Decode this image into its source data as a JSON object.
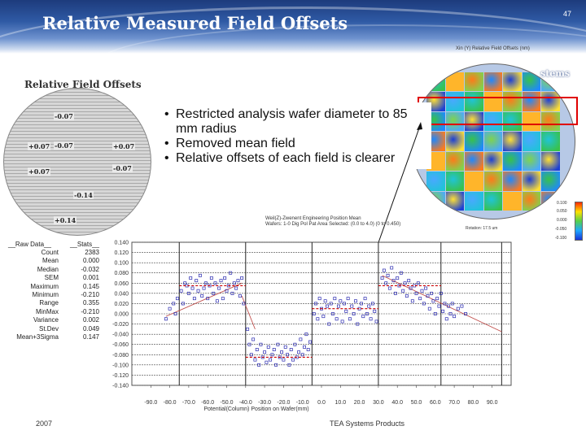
{
  "slide": {
    "title": "Relative Measured Field Offsets",
    "number": "47",
    "brand": "stems",
    "ghost_title": "Xin (Y) Relative Field Offsets (nm)",
    "footer_year": "2007",
    "footer_product": "TEA Systems Products"
  },
  "left_map": {
    "title": "Relative Field Offsets",
    "values": [
      "-0.07",
      "+0.07",
      "-0.07",
      "+0.07",
      "+0.07",
      "-0.07",
      "-0.14",
      "+0.14"
    ]
  },
  "bullets": [
    "Restricted analysis wafer diameter to 85 mm radius",
    "Removed mean field",
    "Relative offsets of each field is clearer"
  ],
  "right_map": {
    "caption": "Rotation: 17.5 um",
    "scale_labels": [
      "0.100",
      "0.050",
      "0.000",
      "-0.050",
      "-0.100"
    ]
  },
  "colors": {
    "banner_dark": "#1d3b7c",
    "highlight": "#e00000",
    "data_points": "#2a2ab0",
    "fit_line": "#c0504d",
    "field_means": "#cc0000"
  },
  "stats": {
    "header_left": "__Raw Data__",
    "header_right": "__Stats__",
    "rows": [
      {
        "label": "Count",
        "value": "2383"
      },
      {
        "label": "Mean",
        "value": "0.000"
      },
      {
        "label": "Median",
        "value": "-0.032"
      },
      {
        "label": "SEM",
        "value": "0.001"
      },
      {
        "label": "Maximum",
        "value": "0.145"
      },
      {
        "label": "Minimum",
        "value": "-0.210"
      },
      {
        "label": "Range",
        "value": "0.355"
      },
      {
        "label": "MinMax",
        "value": "-0.210"
      },
      {
        "label": "Variance",
        "value": "0.002"
      },
      {
        "label": "St.Dev",
        "value": "0.049"
      },
      {
        "label": "Mean+3Sigma",
        "value": "0.147"
      }
    ]
  },
  "chart_data": {
    "type": "scatter",
    "title": "Weil(Z)-Zwenent Engineering Position Mean",
    "subtitle": "Wafers: 1-0 Dig Pol Pat Area Selected: (0.0 to 4.0) (0 to 0.450)",
    "xlabel": "Potential(Column) Position on Wafer(mm)",
    "ylabel": "",
    "xlim": [
      -100,
      100
    ],
    "ylim": [
      -0.14,
      0.14
    ],
    "x_ticks": [
      "-90.0",
      "-80.0",
      "-70.0",
      "-60.0",
      "-50.0",
      "-40.0",
      "-30.0",
      "-20.0",
      "-10.0",
      "0.0",
      "10.0",
      "20.0",
      "30.0",
      "40.0",
      "50.0",
      "60.0",
      "70.0",
      "80.0",
      "90.0"
    ],
    "y_ticks": [
      "0.140",
      "0.120",
      "0.100",
      "0.080",
      "0.060",
      "0.040",
      "0.020",
      "0.000",
      "-0.020",
      "-0.040",
      "-0.060",
      "-0.080",
      "-0.100",
      "-0.120",
      "-0.140"
    ],
    "field_boundaries": [
      -75,
      -40,
      -5,
      30,
      63,
      95
    ],
    "field_means": [
      {
        "x0": -75,
        "x1": -40,
        "y": 0.055
      },
      {
        "x0": -40,
        "x1": -5,
        "y": -0.085
      },
      {
        "x0": -5,
        "x1": 30,
        "y": 0.01
      },
      {
        "x0": 30,
        "x1": 63,
        "y": 0.055
      }
    ],
    "fit_segments": [
      {
        "x0": -82,
        "y0": -0.005,
        "x1": -42,
        "y1": 0.06
      },
      {
        "x0": -42,
        "y0": 0.035,
        "x1": -35,
        "y1": -0.03
      },
      {
        "x0": 32,
        "y0": 0.075,
        "x1": 95,
        "y1": -0.035
      }
    ],
    "points": [
      [
        -82,
        -0.01
      ],
      [
        -80,
        0.01
      ],
      [
        -78,
        0.02
      ],
      [
        -77,
        0.0
      ],
      [
        -76,
        0.03
      ],
      [
        -74,
        0.045
      ],
      [
        -73,
        0.02
      ],
      [
        -72,
        0.06
      ],
      [
        -71,
        0.055
      ],
      [
        -70,
        0.04
      ],
      [
        -69,
        0.07
      ],
      [
        -68,
        0.05
      ],
      [
        -67,
        0.03
      ],
      [
        -66,
        0.065
      ],
      [
        -65,
        0.045
      ],
      [
        -64,
        0.075
      ],
      [
        -63,
        0.035
      ],
      [
        -62,
        0.05
      ],
      [
        -61,
        0.06
      ],
      [
        -60,
        0.03
      ],
      [
        -59,
        0.055
      ],
      [
        -58,
        0.07
      ],
      [
        -57,
        0.04
      ],
      [
        -56,
        0.06
      ],
      [
        -55,
        0.025
      ],
      [
        -54,
        0.05
      ],
      [
        -53,
        0.065
      ],
      [
        -52,
        0.03
      ],
      [
        -51,
        0.07
      ],
      [
        -50,
        0.045
      ],
      [
        -49,
        0.055
      ],
      [
        -48,
        0.08
      ],
      [
        -47,
        0.04
      ],
      [
        -46,
        0.06
      ],
      [
        -45,
        0.05
      ],
      [
        -44,
        0.065
      ],
      [
        -43,
        0.035
      ],
      [
        -42,
        0.07
      ],
      [
        -41,
        0.02
      ],
      [
        -39,
        -0.03
      ],
      [
        -38,
        -0.06
      ],
      [
        -37,
        -0.08
      ],
      [
        -36,
        -0.05
      ],
      [
        -35,
        -0.09
      ],
      [
        -34,
        -0.07
      ],
      [
        -33,
        -0.1
      ],
      [
        -32,
        -0.06
      ],
      [
        -31,
        -0.085
      ],
      [
        -30,
        -0.075
      ],
      [
        -29,
        -0.095
      ],
      [
        -28,
        -0.065
      ],
      [
        -27,
        -0.09
      ],
      [
        -26,
        -0.08
      ],
      [
        -25,
        -0.07
      ],
      [
        -24,
        -0.1
      ],
      [
        -23,
        -0.06
      ],
      [
        -22,
        -0.085
      ],
      [
        -21,
        -0.075
      ],
      [
        -20,
        -0.09
      ],
      [
        -19,
        -0.065
      ],
      [
        -18,
        -0.08
      ],
      [
        -17,
        -0.1
      ],
      [
        -16,
        -0.07
      ],
      [
        -15,
        -0.09
      ],
      [
        -14,
        -0.06
      ],
      [
        -13,
        -0.085
      ],
      [
        -12,
        -0.075
      ],
      [
        -11,
        -0.05
      ],
      [
        -10,
        -0.08
      ],
      [
        -9,
        -0.065
      ],
      [
        -8,
        -0.04
      ],
      [
        -7,
        -0.07
      ],
      [
        -6,
        -0.055
      ],
      [
        -4,
        0.0
      ],
      [
        -3,
        0.02
      ],
      [
        -2,
        -0.01
      ],
      [
        -1,
        0.03
      ],
      [
        0,
        0.01
      ],
      [
        1,
        -0.005
      ],
      [
        2,
        0.025
      ],
      [
        3,
        0.015
      ],
      [
        4,
        -0.02
      ],
      [
        5,
        0.02
      ],
      [
        6,
        0.0
      ],
      [
        7,
        0.03
      ],
      [
        8,
        -0.01
      ],
      [
        9,
        0.015
      ],
      [
        10,
        0.025
      ],
      [
        11,
        -0.015
      ],
      [
        12,
        0.02
      ],
      [
        13,
        0.005
      ],
      [
        14,
        0.03
      ],
      [
        15,
        -0.01
      ],
      [
        16,
        0.015
      ],
      [
        17,
        0.0
      ],
      [
        18,
        0.025
      ],
      [
        19,
        -0.02
      ],
      [
        20,
        0.01
      ],
      [
        21,
        0.02
      ],
      [
        22,
        -0.005
      ],
      [
        23,
        0.03
      ],
      [
        24,
        0.0
      ],
      [
        25,
        0.015
      ],
      [
        26,
        -0.01
      ],
      [
        27,
        0.02
      ],
      [
        28,
        0.005
      ],
      [
        29,
        -0.015
      ],
      [
        32,
        0.07
      ],
      [
        33,
        0.085
      ],
      [
        34,
        0.06
      ],
      [
        35,
        0.075
      ],
      [
        36,
        0.05
      ],
      [
        37,
        0.09
      ],
      [
        38,
        0.065
      ],
      [
        39,
        0.04
      ],
      [
        40,
        0.07
      ],
      [
        41,
        0.055
      ],
      [
        42,
        0.08
      ],
      [
        43,
        0.045
      ],
      [
        44,
        0.06
      ],
      [
        45,
        0.035
      ],
      [
        46,
        0.065
      ],
      [
        47,
        0.05
      ],
      [
        48,
        0.025
      ],
      [
        49,
        0.055
      ],
      [
        50,
        0.04
      ],
      [
        51,
        0.06
      ],
      [
        52,
        0.03
      ],
      [
        53,
        0.045
      ],
      [
        54,
        0.02
      ],
      [
        55,
        0.05
      ],
      [
        56,
        0.035
      ],
      [
        57,
        0.01
      ],
      [
        58,
        0.04
      ],
      [
        59,
        0.025
      ],
      [
        60,
        0.0
      ],
      [
        61,
        0.03
      ],
      [
        62,
        0.015
      ],
      [
        63,
        0.04
      ],
      [
        64,
        0.005
      ],
      [
        65,
        0.02
      ],
      [
        66,
        -0.01
      ],
      [
        67,
        0.015
      ],
      [
        68,
        0.0
      ],
      [
        69,
        0.02
      ],
      [
        70,
        -0.005
      ],
      [
        72,
        0.01
      ],
      [
        74,
        0.015
      ],
      [
        76,
        0.0
      ]
    ]
  }
}
